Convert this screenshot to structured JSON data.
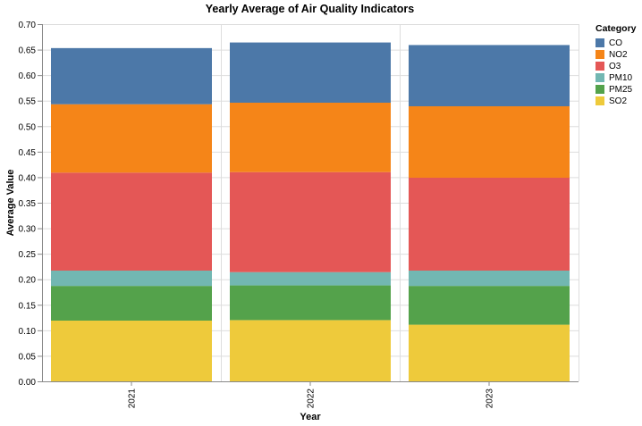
{
  "chart_data": {
    "type": "bar",
    "stacked": true,
    "title": "Yearly Average of Air Quality Indicators",
    "xlabel": "Year",
    "ylabel": "Average Value",
    "ylim": [
      0,
      0.7
    ],
    "yticks": [
      "0.00",
      "0.05",
      "0.10",
      "0.15",
      "0.20",
      "0.25",
      "0.30",
      "0.35",
      "0.40",
      "0.45",
      "0.50",
      "0.55",
      "0.60",
      "0.65",
      "0.70"
    ],
    "grid": true,
    "legend_title": "Category",
    "legend_position": "top-right",
    "categories": [
      "2021",
      "2022",
      "2023"
    ],
    "series": [
      {
        "name": "SO2",
        "color": "#eeca3b",
        "values": [
          0.119,
          0.12,
          0.111
        ]
      },
      {
        "name": "PM25",
        "color": "#54a24b",
        "values": [
          0.068,
          0.068,
          0.076
        ]
      },
      {
        "name": "PM10",
        "color": "#72b7b2",
        "values": [
          0.03,
          0.026,
          0.03
        ]
      },
      {
        "name": "O3",
        "color": "#e45756",
        "values": [
          0.192,
          0.196,
          0.182
        ]
      },
      {
        "name": "NO2",
        "color": "#f58518",
        "values": [
          0.134,
          0.136,
          0.14
        ]
      },
      {
        "name": "CO",
        "color": "#4c78a8",
        "values": [
          0.11,
          0.118,
          0.12
        ]
      }
    ],
    "legend_order": [
      "CO",
      "NO2",
      "O3",
      "PM10",
      "PM25",
      "SO2"
    ]
  }
}
